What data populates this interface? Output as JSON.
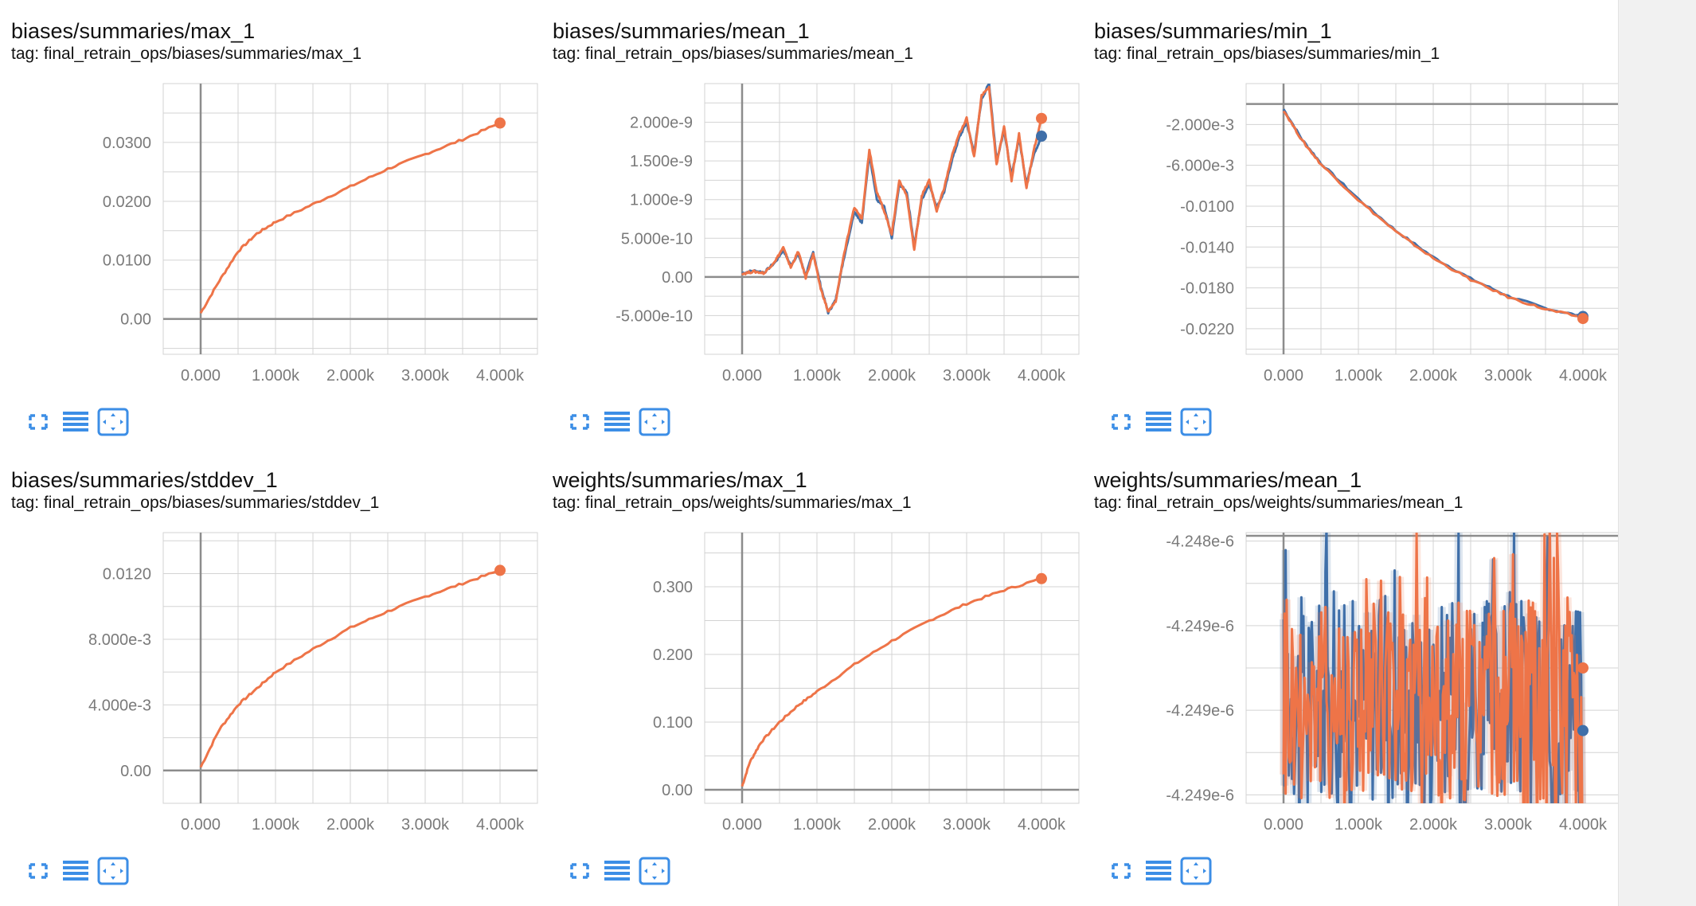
{
  "colors": {
    "orange": "#ee7448",
    "blue": "#3f6fa9",
    "grid": "#d3d3d3",
    "axis": "#8c8c8c",
    "tick_label": "#7a7a7a",
    "icon": "#3c8ee6"
  },
  "toolbar": {
    "icons": [
      "fullscreen-icon",
      "list-icon",
      "fit-domain-icon"
    ]
  },
  "charts": [
    {
      "title": "biases/summaries/max_1",
      "tag": "tag: final_retrain_ops/biases/summaries/max_1"
    },
    {
      "title": "biases/summaries/mean_1",
      "tag": "tag: final_retrain_ops/biases/summaries/mean_1"
    },
    {
      "title": "biases/summaries/min_1",
      "tag": "tag: final_retrain_ops/biases/summaries/min_1"
    },
    {
      "title": "biases/summaries/stddev_1",
      "tag": "tag: final_retrain_ops/biases/summaries/stddev_1"
    },
    {
      "title": "weights/summaries/max_1",
      "tag": "tag: final_retrain_ops/weights/summaries/max_1"
    },
    {
      "title": "weights/summaries/mean_1",
      "tag": "tag: final_retrain_ops/weights/summaries/mean_1"
    }
  ],
  "chart_data": [
    {
      "type": "line",
      "title": "biases/summaries/max_1",
      "xlim": [
        -500,
        4500
      ],
      "ylim": [
        -0.006,
        0.04
      ],
      "xticks": [
        0,
        1000,
        2000,
        3000,
        4000
      ],
      "xtick_labels": [
        "0.000",
        "1.000k",
        "2.000k",
        "3.000k",
        "4.000k"
      ],
      "yticks": [
        0,
        0.01,
        0.02,
        0.03
      ],
      "ytick_labels": [
        "0.00",
        "0.0100",
        "0.0200",
        "0.0300"
      ],
      "ygrid_step": 0.005,
      "xgrid_step": 500,
      "series": [
        {
          "color": "orange",
          "x": [
            0,
            250,
            500,
            750,
            1000,
            1500,
            2000,
            2500,
            3000,
            3500,
            4000
          ],
          "y": [
            0.001,
            0.0065,
            0.0115,
            0.0145,
            0.0165,
            0.0195,
            0.0225,
            0.0255,
            0.028,
            0.0305,
            0.0333
          ]
        }
      ],
      "end_markers": [
        {
          "color": "orange",
          "x": 4000,
          "y": 0.0333
        }
      ]
    },
    {
      "type": "line",
      "title": "biases/summaries/mean_1",
      "xlim": [
        -500,
        4500
      ],
      "ylim": [
        -1e-09,
        2.5e-09
      ],
      "xticks": [
        0,
        1000,
        2000,
        3000,
        4000
      ],
      "xtick_labels": [
        "0.000",
        "1.000k",
        "2.000k",
        "3.000k",
        "4.000k"
      ],
      "yticks": [
        -5e-10,
        0,
        5e-10,
        1e-09,
        1.5e-09,
        2e-09
      ],
      "ytick_labels": [
        "-5.000e-10",
        "0.00",
        "5.000e-10",
        "1.000e-9",
        "1.500e-9",
        "2.000e-9"
      ],
      "ygrid_step": 2.5e-10,
      "xgrid_step": 500,
      "series": [
        {
          "color": "blue",
          "x": [
            0,
            150,
            300,
            450,
            550,
            650,
            750,
            850,
            950,
            1050,
            1150,
            1250,
            1350,
            1500,
            1600,
            1700,
            1800,
            1900,
            2000,
            2100,
            2200,
            2300,
            2400,
            2500,
            2600,
            2700,
            2800,
            2900,
            3000,
            3100,
            3200,
            3300,
            3400,
            3500,
            3600,
            3700,
            3800,
            3900,
            4000
          ],
          "y": [
            5e-11,
            8e-11,
            6e-11,
            2e-10,
            3.5e-10,
            1.5e-10,
            3e-10,
            2e-11,
            3.2e-10,
            -1.2e-10,
            -4.6e-10,
            -3e-10,
            2e-10,
            8.5e-10,
            7e-10,
            1.6e-09,
            1e-09,
            9e-10,
            5e-10,
            1.2e-09,
            1.1e-09,
            4e-10,
            1e-09,
            1.2e-09,
            9e-10,
            1.1e-09,
            1.5e-09,
            1.8e-09,
            2e-09,
            1.6e-09,
            2.3e-09,
            2.5e-09,
            1.5e-09,
            1.9e-09,
            1.3e-09,
            1.8e-09,
            1.2e-09,
            1.6e-09,
            1.8e-09
          ]
        },
        {
          "color": "orange",
          "x": [
            0,
            150,
            300,
            450,
            550,
            650,
            750,
            850,
            950,
            1050,
            1150,
            1250,
            1350,
            1500,
            1600,
            1700,
            1800,
            1900,
            2000,
            2100,
            2200,
            2300,
            2400,
            2500,
            2600,
            2700,
            2800,
            2900,
            3000,
            3100,
            3200,
            3300,
            3400,
            3500,
            3600,
            3700,
            3800,
            3900,
            4000
          ],
          "y": [
            4e-11,
            7e-11,
            5e-11,
            2.2e-10,
            3.8e-10,
            1.2e-10,
            3.3e-10,
            -1e-11,
            3e-10,
            -1.5e-10,
            -4.5e-10,
            -3.2e-10,
            2.4e-10,
            9e-10,
            7.5e-10,
            1.65e-09,
            1.1e-09,
            8.5e-10,
            5.5e-10,
            1.25e-09,
            1.05e-09,
            3.5e-10,
            1.05e-09,
            1.25e-09,
            8.5e-10,
            1.15e-09,
            1.55e-09,
            1.85e-09,
            2.05e-09,
            1.55e-09,
            2.35e-09,
            2.45e-09,
            1.45e-09,
            1.95e-09,
            1.25e-09,
            1.85e-09,
            1.15e-09,
            1.65e-09,
            2.05e-09
          ]
        }
      ],
      "end_markers": [
        {
          "color": "blue",
          "x": 4000,
          "y": 1.82e-09
        },
        {
          "color": "orange",
          "x": 4000,
          "y": 2.05e-09
        }
      ]
    },
    {
      "type": "line",
      "title": "biases/summaries/min_1",
      "xlim": [
        -500,
        4500
      ],
      "ylim": [
        -0.0245,
        0.002
      ],
      "xticks": [
        0,
        1000,
        2000,
        3000,
        4000
      ],
      "xtick_labels": [
        "0.000",
        "1.000k",
        "2.000k",
        "3.000k",
        "4.000k"
      ],
      "yticks": [
        -0.022,
        -0.018,
        -0.014,
        -0.01,
        -0.006,
        -0.002
      ],
      "ytick_labels": [
        "-0.0220",
        "-0.0180",
        "-0.0140",
        "-0.0100",
        "-6.000e-3",
        "-2.000e-3"
      ],
      "ygrid_step": 0.002,
      "xgrid_step": 500,
      "series": [
        {
          "color": "blue",
          "x": [
            0,
            250,
            500,
            1000,
            1500,
            2000,
            2500,
            3000,
            3500,
            4000
          ],
          "y": [
            -0.0005,
            -0.0035,
            -0.0058,
            -0.0093,
            -0.0124,
            -0.015,
            -0.0171,
            -0.0188,
            -0.02,
            -0.0208
          ]
        },
        {
          "color": "orange",
          "x": [
            0,
            250,
            500,
            1000,
            1500,
            2000,
            2500,
            3000,
            3500,
            4000
          ],
          "y": [
            -0.0006,
            -0.0036,
            -0.0059,
            -0.0094,
            -0.0125,
            -0.0151,
            -0.0172,
            -0.0189,
            -0.0201,
            -0.0209
          ]
        }
      ],
      "end_markers": [
        {
          "color": "blue",
          "x": 4000,
          "y": -0.0208
        },
        {
          "color": "orange",
          "x": 4000,
          "y": -0.021
        }
      ]
    },
    {
      "type": "line",
      "title": "biases/summaries/stddev_1",
      "xlim": [
        -500,
        4500
      ],
      "ylim": [
        -0.002,
        0.0145
      ],
      "xticks": [
        0,
        1000,
        2000,
        3000,
        4000
      ],
      "xtick_labels": [
        "0.000",
        "1.000k",
        "2.000k",
        "3.000k",
        "4.000k"
      ],
      "yticks": [
        0,
        0.004,
        0.008,
        0.012
      ],
      "ytick_labels": [
        "0.00",
        "4.000e-3",
        "8.000e-3",
        "0.0120"
      ],
      "ygrid_step": 0.002,
      "xgrid_step": 500,
      "series": [
        {
          "color": "orange",
          "x": [
            0,
            250,
            500,
            750,
            1000,
            1500,
            2000,
            2500,
            3000,
            3500,
            4000
          ],
          "y": [
            0.0002,
            0.0025,
            0.004,
            0.005,
            0.006,
            0.0074,
            0.0087,
            0.0097,
            0.0106,
            0.0114,
            0.0122
          ]
        }
      ],
      "end_markers": [
        {
          "color": "orange",
          "x": 4000,
          "y": 0.0122
        }
      ]
    },
    {
      "type": "line",
      "title": "weights/summaries/max_1",
      "xlim": [
        -500,
        4500
      ],
      "ylim": [
        -0.02,
        0.38
      ],
      "xticks": [
        0,
        1000,
        2000,
        3000,
        4000
      ],
      "xtick_labels": [
        "0.000",
        "1.000k",
        "2.000k",
        "3.000k",
        "4.000k"
      ],
      "yticks": [
        0,
        0.1,
        0.2,
        0.3
      ],
      "ytick_labels": [
        "0.00",
        "0.100",
        "0.200",
        "0.300"
      ],
      "ygrid_step": 0.05,
      "xgrid_step": 500,
      "series": [
        {
          "color": "orange",
          "x": [
            0,
            100,
            250,
            500,
            750,
            1000,
            1500,
            2000,
            2500,
            3000,
            3500,
            4000
          ],
          "y": [
            0.005,
            0.04,
            0.07,
            0.1,
            0.125,
            0.145,
            0.185,
            0.22,
            0.25,
            0.275,
            0.295,
            0.312
          ]
        }
      ],
      "end_markers": [
        {
          "color": "orange",
          "x": 4000,
          "y": 0.312
        }
      ]
    },
    {
      "type": "line",
      "title": "weights/summaries/mean_1",
      "xlim": [
        -500,
        4500
      ],
      "ylim": [
        -4.24955e-06,
        -4.24795e-06
      ],
      "xticks": [
        0,
        1000,
        2000,
        3000,
        4000
      ],
      "xtick_labels": [
        "0.000",
        "1.000k",
        "2.000k",
        "3.000k",
        "4.000k"
      ],
      "yticks": [
        -4.248e-06,
        -4.2485e-06,
        -4.249e-06,
        -4.2495e-06
      ],
      "ytick_labels": [
        "-4.248e-6",
        "-4.249e-6",
        "-4.249e-6",
        "-4.249e-6"
      ],
      "ygrid_step": 2.5e-10,
      "xgrid_step": 500,
      "series": [
        {
          "color": "blue",
          "noisy": true,
          "center": -4.24893e-06,
          "amplitude": 6e-10,
          "x": [
            0,
            4000
          ]
        },
        {
          "color": "orange",
          "noisy": true,
          "center": -4.24893e-06,
          "amplitude": 6e-10,
          "x": [
            0,
            4000
          ]
        }
      ],
      "end_markers": [
        {
          "color": "blue",
          "x": 4000,
          "y": -4.24912e-06
        },
        {
          "color": "orange",
          "x": 4000,
          "y": -4.24875e-06
        }
      ]
    }
  ]
}
